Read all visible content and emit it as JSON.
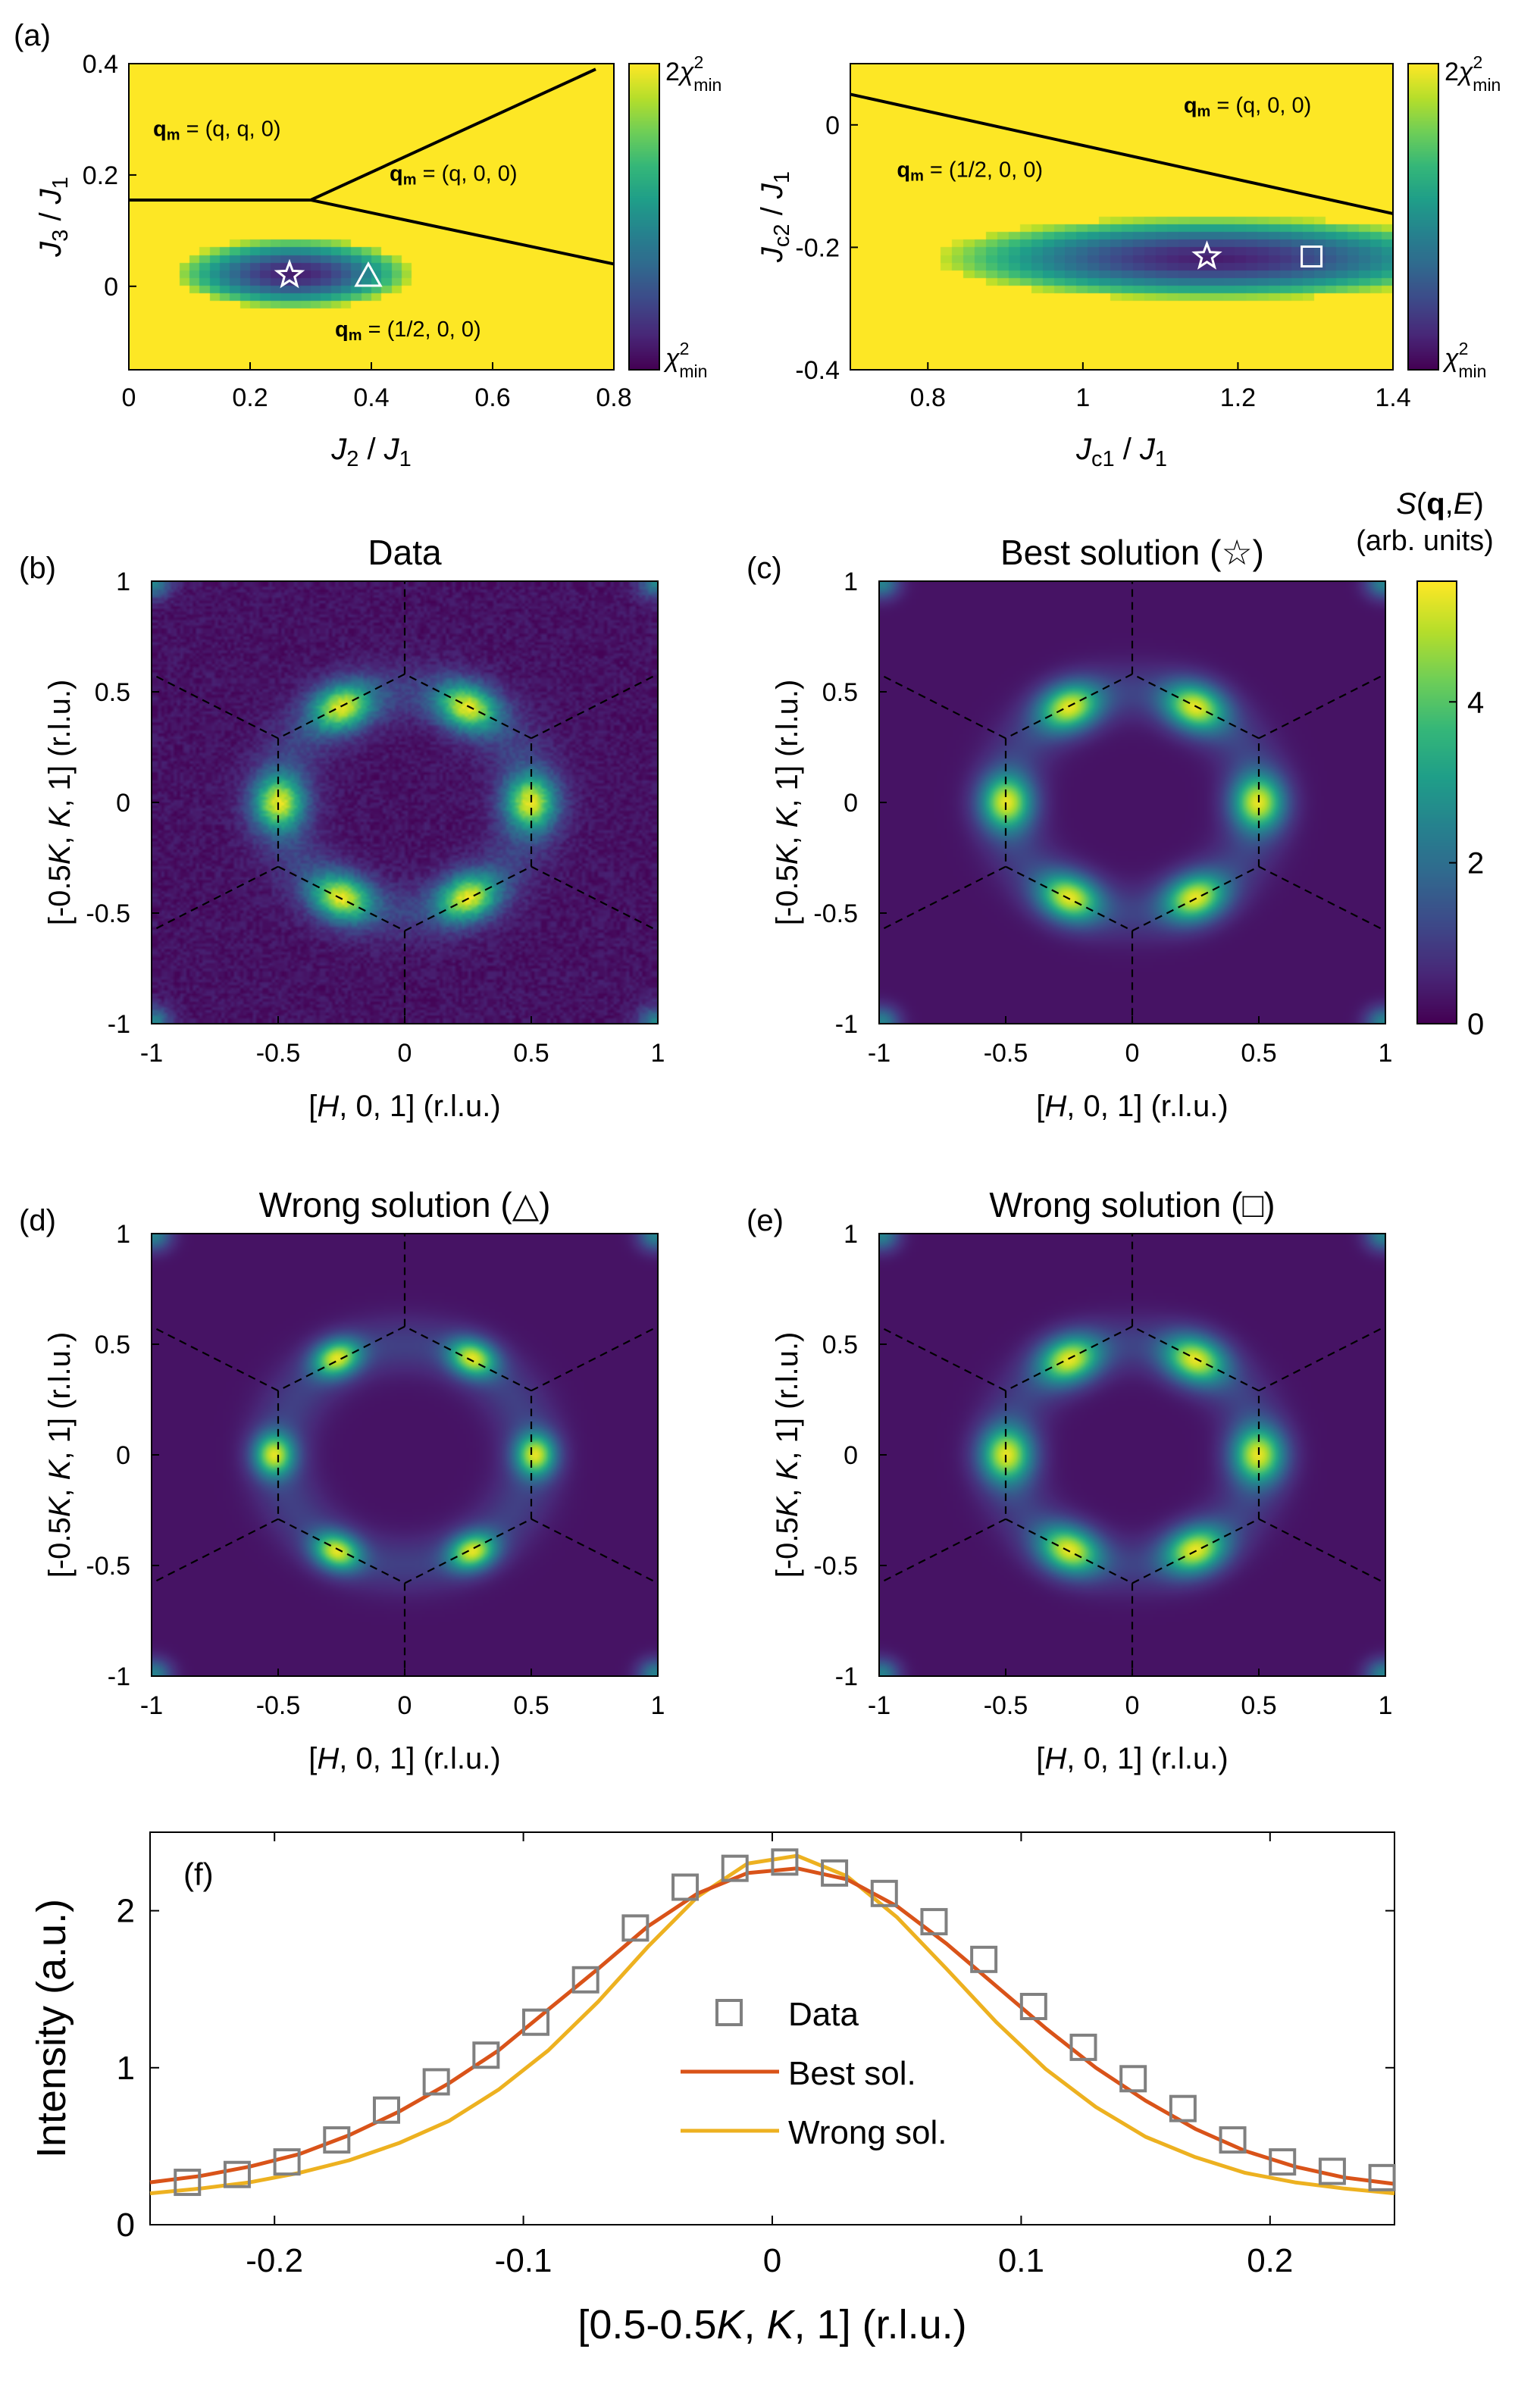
{
  "colors": {
    "viridis": [
      "#440154",
      "#482878",
      "#3e4989",
      "#31688e",
      "#26828e",
      "#1f9e89",
      "#35b779",
      "#6ece58",
      "#b5de2b",
      "#fde725"
    ],
    "boundary": "#000000",
    "dash": "#000000",
    "data_marker": "#808080",
    "best_line": "#d95319",
    "wrong_line": "#edb120"
  },
  "chart_data": [
    {
      "id": "a-left",
      "type": "heatmap",
      "panel_label": "(a)",
      "xlabel": "J2 / J1",
      "ylabel": "J3 / J1",
      "xlim": [
        0,
        0.8
      ],
      "ylim": [
        -0.15,
        0.4
      ],
      "xticks": [
        "0",
        "0.2",
        "0.4",
        "0.6",
        "0.8"
      ],
      "xtick_values": [
        0,
        0.2,
        0.4,
        0.6,
        0.8
      ],
      "yticks": [
        "0",
        "0.2",
        "0.4"
      ],
      "ytick_values": [
        0,
        0.2,
        0.4
      ],
      "colorbar": {
        "top": "2χ²min",
        "bottom": "χ²min"
      },
      "minimum_region": {
        "center": [
          0.27,
          0.02
        ],
        "half_width": [
          0.2,
          0.065
        ]
      },
      "phase_boundaries": [
        [
          [
            0,
            0.155
          ],
          [
            0.3,
            0.155
          ]
        ],
        [
          [
            0.3,
            0.155
          ],
          [
            0.77,
            0.39
          ]
        ],
        [
          [
            0.3,
            0.155
          ],
          [
            0.8,
            0.04
          ]
        ]
      ],
      "phase_labels": [
        {
          "prefix": "q",
          "sub": "m",
          "text": " = (q, q, 0)",
          "pos": [
            0.04,
            0.27
          ]
        },
        {
          "prefix": "q",
          "sub": "m",
          "text": " = (q, 0, 0)",
          "pos": [
            0.43,
            0.19
          ]
        },
        {
          "prefix": "q",
          "sub": "m",
          "text": " = (1/2, 0, 0)",
          "pos": [
            0.34,
            -0.09
          ]
        }
      ],
      "markers": [
        {
          "shape": "star",
          "x": 0.265,
          "y": 0.02,
          "label": "best"
        },
        {
          "shape": "triangle",
          "x": 0.395,
          "y": 0.02,
          "label": "wrong"
        }
      ]
    },
    {
      "id": "a-right",
      "type": "heatmap",
      "xlabel": "Jc1 / J1",
      "ylabel": "Jc2 / J1",
      "xlim": [
        0.7,
        1.4
      ],
      "ylim": [
        -0.4,
        0.1
      ],
      "xticks": [
        "0.8",
        "1",
        "1.2",
        "1.4"
      ],
      "xtick_values": [
        0.8,
        1.0,
        1.2,
        1.4
      ],
      "yticks": [
        "-0.4",
        "-0.2",
        "0"
      ],
      "ytick_values": [
        -0.4,
        -0.2,
        0
      ],
      "colorbar": {
        "top": "2χ²min",
        "bottom": "χ²min"
      },
      "minimum_region": {
        "center": [
          1.17,
          -0.22
        ],
        "half_width": [
          0.36,
          0.07
        ]
      },
      "phase_boundaries": [
        [
          [
            0.7,
            0.05
          ],
          [
            1.4,
            -0.145
          ]
        ]
      ],
      "phase_labels": [
        {
          "prefix": "q",
          "sub": "m",
          "text": " = (q, 0, 0)",
          "pos": [
            1.13,
            0.02
          ]
        },
        {
          "prefix": "q",
          "sub": "m",
          "text": " = (1/2, 0, 0)",
          "pos": [
            0.76,
            -0.085
          ]
        }
      ],
      "markers": [
        {
          "shape": "star",
          "x": 1.16,
          "y": -0.215,
          "label": "best"
        },
        {
          "shape": "square",
          "x": 1.295,
          "y": -0.215,
          "label": "wrong"
        }
      ]
    },
    {
      "id": "b",
      "type": "heatmap",
      "panel_label": "(b)",
      "title": "Data",
      "xlabel": "[H, 0, 1] (r.l.u.)",
      "ylabel": "[-0.5K, K, 1] (r.l.u.)",
      "xlim": [
        -1,
        1
      ],
      "ylim": [
        -1,
        1
      ],
      "xticks": [
        "-1",
        "-0.5",
        "0",
        "0.5",
        "1"
      ],
      "yticks": [
        "-1",
        "-0.5",
        "0",
        "0.5",
        "1"
      ],
      "tick_values": [
        -1,
        -0.5,
        0,
        0.5,
        1
      ],
      "peaks": [
        [
          0.5,
          0
        ],
        [
          -0.5,
          0
        ],
        [
          0.25,
          0.433
        ],
        [
          -0.25,
          0.433
        ],
        [
          0.25,
          -0.433
        ],
        [
          -0.25,
          -0.433
        ]
      ],
      "noisy": true
    },
    {
      "id": "c",
      "type": "heatmap",
      "panel_label": "(c)",
      "title": "Best solution (☆)",
      "xlabel": "[H, 0, 1] (r.l.u.)",
      "ylabel": "[-0.5K, K, 1] (r.l.u.)",
      "xlim": [
        -1,
        1
      ],
      "ylim": [
        -1,
        1
      ],
      "xticks": [
        "-1",
        "-0.5",
        "0",
        "0.5",
        "1"
      ],
      "yticks": [
        "-1",
        "-0.5",
        "0",
        "0.5",
        "1"
      ],
      "tick_values": [
        -1,
        -0.5,
        0,
        0.5,
        1
      ],
      "peaks": [
        [
          0.5,
          0
        ],
        [
          -0.5,
          0
        ],
        [
          0.25,
          0.433
        ],
        [
          -0.25,
          0.433
        ],
        [
          0.25,
          -0.433
        ],
        [
          -0.25,
          -0.433
        ]
      ],
      "colorbar": {
        "label_line1": "S(q,E)",
        "label_line2": "(arb. units)",
        "range": [
          0,
          5.5
        ],
        "ticks": [
          "0",
          "2",
          "4"
        ],
        "tick_values": [
          0,
          2,
          4
        ]
      }
    },
    {
      "id": "d",
      "type": "heatmap",
      "panel_label": "(d)",
      "title": "Wrong solution (△)",
      "xlabel": "[H, 0, 1] (r.l.u.)",
      "ylabel": "[-0.5K, K, 1] (r.l.u.)",
      "xlim": [
        -1,
        1
      ],
      "ylim": [
        -1,
        1
      ],
      "xticks": [
        "-1",
        "-0.5",
        "0",
        "0.5",
        "1"
      ],
      "yticks": [
        "-1",
        "-0.5",
        "0",
        "0.5",
        "1"
      ],
      "tick_values": [
        -1,
        -0.5,
        0,
        0.5,
        1
      ],
      "peaks": [
        [
          0.52,
          0
        ],
        [
          -0.52,
          0
        ],
        [
          0.27,
          0.44
        ],
        [
          -0.27,
          0.44
        ],
        [
          0.27,
          -0.44
        ],
        [
          -0.27,
          -0.44
        ]
      ],
      "sharp": true
    },
    {
      "id": "e",
      "type": "heatmap",
      "panel_label": "(e)",
      "title": "Wrong solution (□)",
      "xlabel": "[H, 0, 1] (r.l.u.)",
      "ylabel": "[-0.5K, K, 1] (r.l.u.)",
      "xlim": [
        -1,
        1
      ],
      "ylim": [
        -1,
        1
      ],
      "xticks": [
        "-1",
        "-0.5",
        "0",
        "0.5",
        "1"
      ],
      "yticks": [
        "-1",
        "-0.5",
        "0",
        "0.5",
        "1"
      ],
      "tick_values": [
        -1,
        -0.5,
        0,
        0.5,
        1
      ],
      "peaks": [
        [
          0.5,
          0
        ],
        [
          -0.5,
          0
        ],
        [
          0.25,
          0.433
        ],
        [
          -0.25,
          0.433
        ],
        [
          0.25,
          -0.433
        ],
        [
          -0.25,
          -0.433
        ]
      ]
    },
    {
      "id": "f",
      "type": "line",
      "panel_label": "(f)",
      "xlabel": "[0.5-0.5K, K, 1] (r.l.u.)",
      "ylabel": "Intensity (a.u.)",
      "xlim": [
        -0.25,
        0.25
      ],
      "ylim": [
        0,
        2.5
      ],
      "xticks": [
        "-0.2",
        "-0.1",
        "0",
        "0.1",
        "0.2"
      ],
      "xtick_values": [
        -0.2,
        -0.1,
        0,
        0.1,
        0.2
      ],
      "yticks": [
        "0",
        "1",
        "2"
      ],
      "ytick_values": [
        0,
        1,
        2
      ],
      "legend": [
        "Data",
        "Best sol.",
        "Wrong sol."
      ],
      "series": [
        {
          "name": "Data",
          "style": "markers",
          "x": [
            -0.235,
            -0.215,
            -0.195,
            -0.175,
            -0.155,
            -0.135,
            -0.115,
            -0.095,
            -0.075,
            -0.055,
            -0.035,
            -0.015,
            0.005,
            0.025,
            0.045,
            0.065,
            0.085,
            0.105,
            0.125,
            0.145,
            0.165,
            0.185,
            0.205,
            0.225,
            0.245
          ],
          "y": [
            0.27,
            0.32,
            0.4,
            0.54,
            0.73,
            0.91,
            1.08,
            1.29,
            1.56,
            1.89,
            2.15,
            2.27,
            2.31,
            2.24,
            2.11,
            1.93,
            1.69,
            1.39,
            1.13,
            0.93,
            0.74,
            0.54,
            0.4,
            0.34,
            0.3
          ]
        },
        {
          "name": "Best sol.",
          "style": "line",
          "x": [
            -0.25,
            -0.23,
            -0.21,
            -0.19,
            -0.17,
            -0.15,
            -0.13,
            -0.11,
            -0.09,
            -0.07,
            -0.05,
            -0.03,
            -0.01,
            0.01,
            0.03,
            0.05,
            0.07,
            0.09,
            0.11,
            0.13,
            0.15,
            0.17,
            0.19,
            0.21,
            0.23,
            0.25
          ],
          "y": [
            0.27,
            0.31,
            0.37,
            0.45,
            0.57,
            0.72,
            0.9,
            1.11,
            1.37,
            1.63,
            1.9,
            2.11,
            2.24,
            2.27,
            2.2,
            2.03,
            1.79,
            1.52,
            1.25,
            1.0,
            0.79,
            0.61,
            0.47,
            0.37,
            0.3,
            0.26
          ]
        },
        {
          "name": "Wrong sol.",
          "style": "line",
          "x": [
            -0.25,
            -0.23,
            -0.21,
            -0.19,
            -0.17,
            -0.15,
            -0.13,
            -0.11,
            -0.09,
            -0.07,
            -0.05,
            -0.03,
            -0.01,
            0.01,
            0.03,
            0.05,
            0.07,
            0.09,
            0.11,
            0.13,
            0.15,
            0.17,
            0.19,
            0.21,
            0.23,
            0.25
          ],
          "y": [
            0.2,
            0.23,
            0.27,
            0.33,
            0.41,
            0.52,
            0.66,
            0.86,
            1.11,
            1.42,
            1.77,
            2.09,
            2.3,
            2.35,
            2.22,
            1.96,
            1.63,
            1.29,
            0.99,
            0.75,
            0.56,
            0.43,
            0.33,
            0.27,
            0.23,
            0.2
          ]
        }
      ]
    }
  ]
}
